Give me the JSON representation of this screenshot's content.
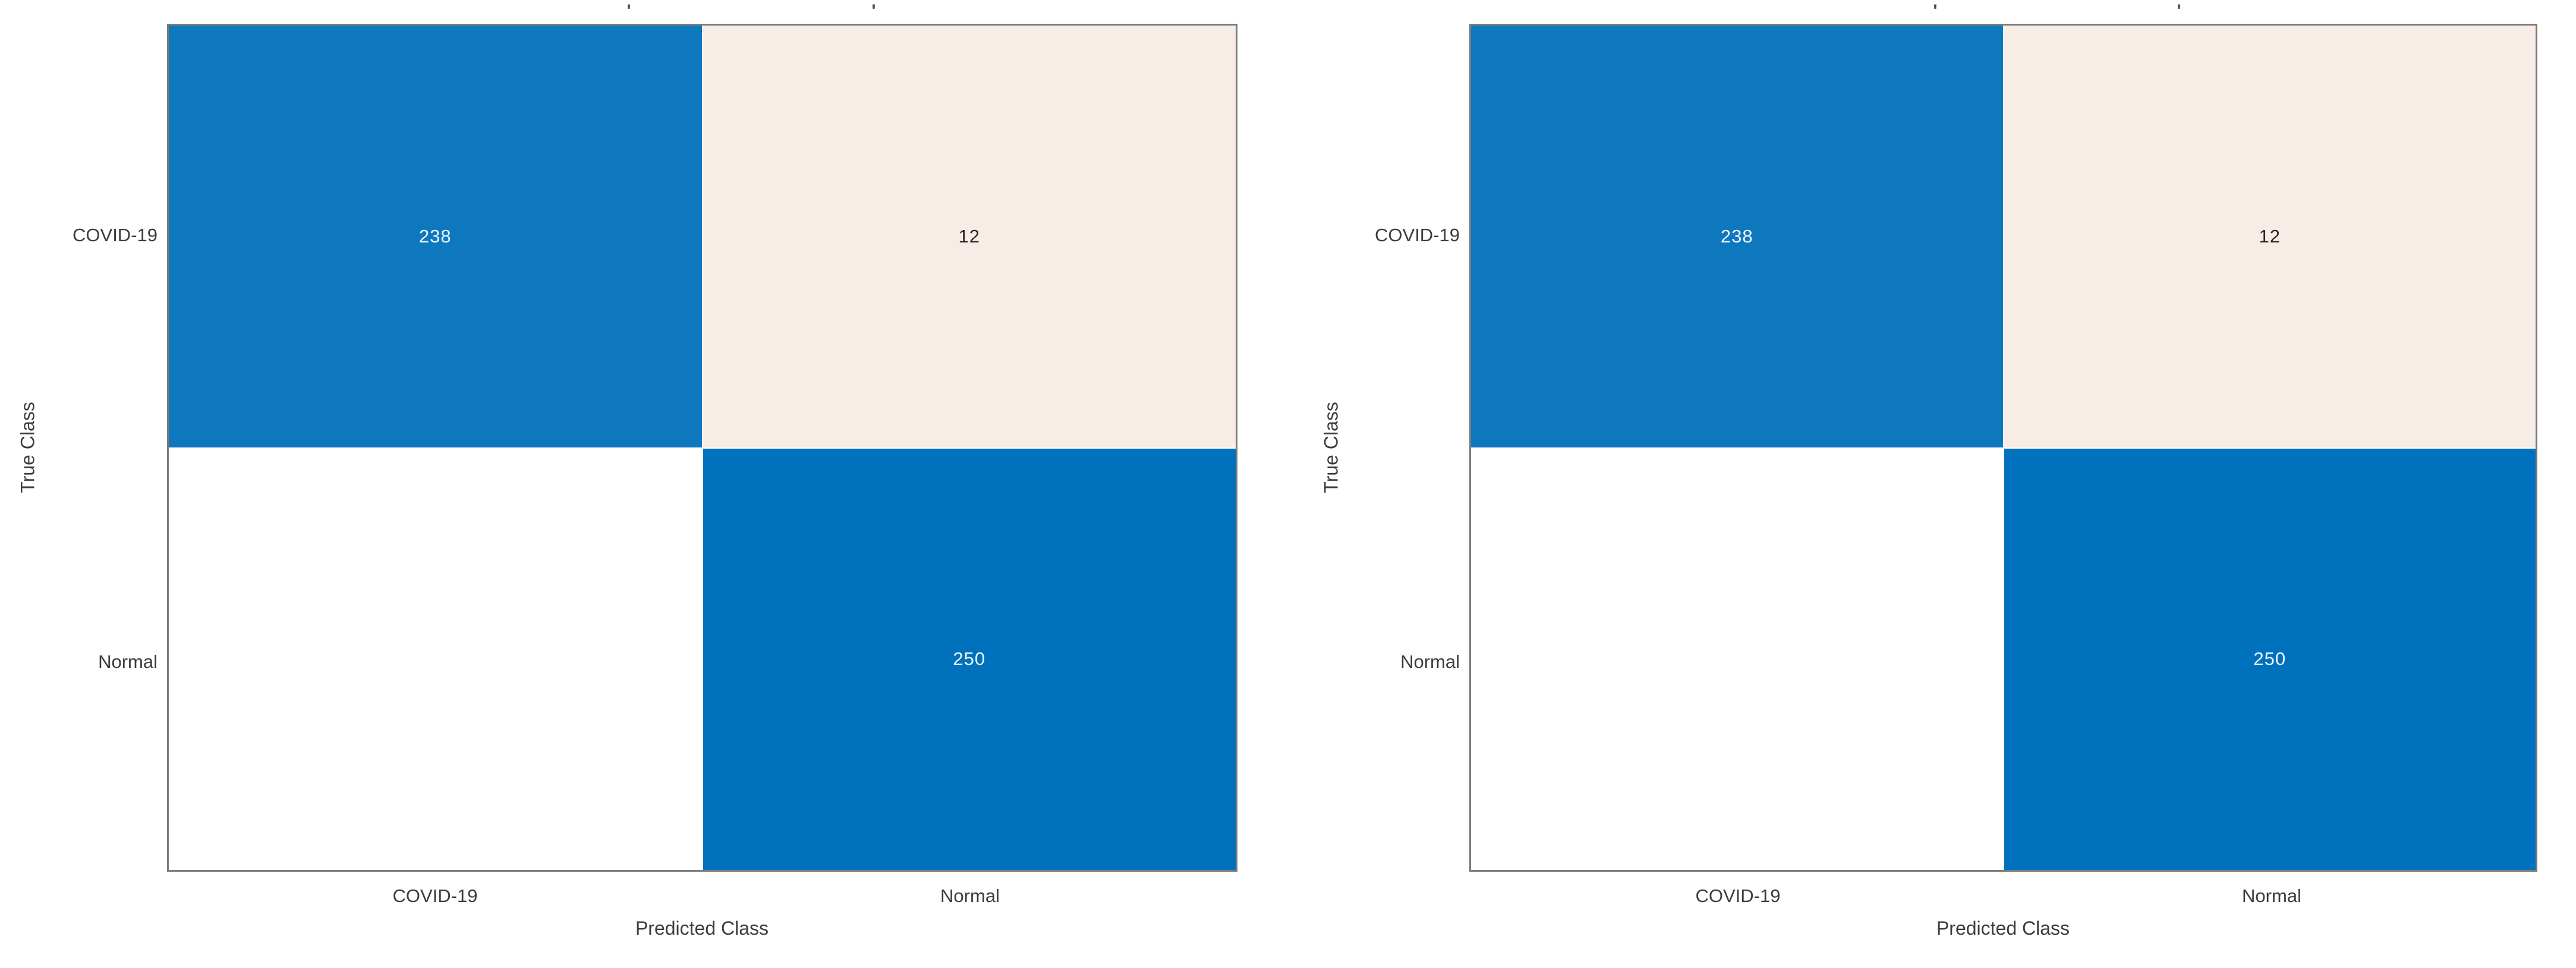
{
  "palette": {
    "diag_blue_238": "#0e78be",
    "diag_blue_250": "#0071bc",
    "offdiag_pink": "#f8ece7",
    "empty_white": "#ffffff",
    "axis_border": "#7b7b7b",
    "label_gray": "#3c3c3c",
    "cell_text_light": "#f0f6fb",
    "cell_text_dark": "#262626",
    "page_bg": "#ffffff"
  },
  "charts": [
    {
      "xlabel": "Predicted Class",
      "ylabel": "True Class",
      "row_labels": [
        "COVID-19",
        "Normal"
      ],
      "col_labels": [
        "COVID-19",
        "Normal"
      ],
      "cells": [
        [
          "238",
          "12"
        ],
        [
          "",
          "250"
        ]
      ],
      "top_marks": [
        "'",
        "'"
      ]
    },
    {
      "xlabel": "Predicted Class",
      "ylabel": "True Class",
      "row_labels": [
        "COVID-19",
        "Normal"
      ],
      "col_labels": [
        "COVID-19",
        "Normal"
      ],
      "cells": [
        [
          "238",
          "12"
        ],
        [
          "",
          "250"
        ]
      ],
      "top_marks": [
        "'",
        "'"
      ]
    }
  ],
  "chart_data": [
    {
      "type": "heatmap",
      "title": "",
      "xlabel": "Predicted Class",
      "ylabel": "True Class",
      "x_categories": [
        "COVID-19",
        "Normal"
      ],
      "y_categories": [
        "COVID-19",
        "Normal"
      ],
      "values": [
        [
          238,
          12
        ],
        [
          0,
          250
        ]
      ],
      "value_labels": [
        [
          "238",
          "12"
        ],
        [
          "",
          "250"
        ]
      ],
      "cell_colors": [
        [
          "#0e78be",
          "#f8ece7"
        ],
        [
          "#ffffff",
          "#0071bc"
        ]
      ],
      "grid": false,
      "legend_position": "none"
    },
    {
      "type": "heatmap",
      "title": "",
      "xlabel": "Predicted Class",
      "ylabel": "True Class",
      "x_categories": [
        "COVID-19",
        "Normal"
      ],
      "y_categories": [
        "COVID-19",
        "Normal"
      ],
      "values": [
        [
          238,
          12
        ],
        [
          0,
          250
        ]
      ],
      "value_labels": [
        [
          "238",
          "12"
        ],
        [
          "",
          "250"
        ]
      ],
      "cell_colors": [
        [
          "#0e78be",
          "#f8ece7"
        ],
        [
          "#ffffff",
          "#0071bc"
        ]
      ],
      "grid": false,
      "legend_position": "none"
    }
  ]
}
